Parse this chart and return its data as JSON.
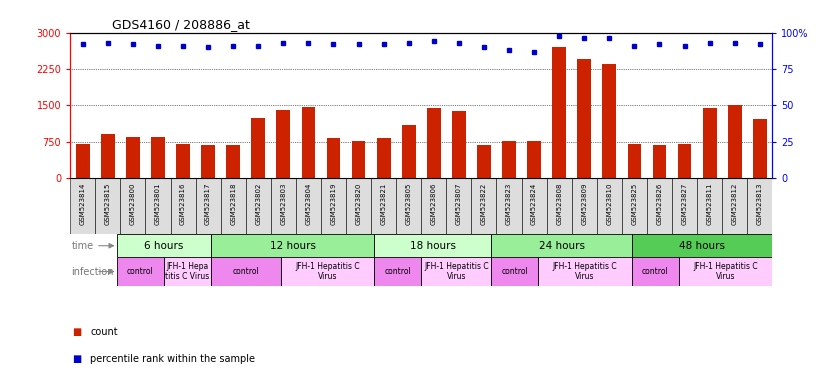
{
  "title": "GDS4160 / 208886_at",
  "samples": [
    "GSM523814",
    "GSM523815",
    "GSM523800",
    "GSM523801",
    "GSM523816",
    "GSM523817",
    "GSM523818",
    "GSM523802",
    "GSM523803",
    "GSM523804",
    "GSM523819",
    "GSM523820",
    "GSM523821",
    "GSM523805",
    "GSM523806",
    "GSM523807",
    "GSM523822",
    "GSM523823",
    "GSM523824",
    "GSM523808",
    "GSM523809",
    "GSM523810",
    "GSM523825",
    "GSM523826",
    "GSM523827",
    "GSM523811",
    "GSM523812",
    "GSM523813"
  ],
  "counts": [
    710,
    900,
    840,
    840,
    700,
    670,
    670,
    1230,
    1400,
    1460,
    820,
    760,
    820,
    1100,
    1450,
    1380,
    690,
    760,
    760,
    2700,
    2450,
    2350,
    700,
    670,
    700,
    1450,
    1510,
    1220
  ],
  "percentiles": [
    92,
    93,
    92,
    91,
    91,
    90,
    91,
    91,
    93,
    93,
    92,
    92,
    92,
    93,
    94,
    93,
    90,
    88,
    87,
    98,
    96,
    96,
    91,
    92,
    91,
    93,
    93,
    92
  ],
  "time_groups": [
    {
      "label": "6 hours",
      "start": 0,
      "end": 4,
      "color": "#ccffcc"
    },
    {
      "label": "12 hours",
      "start": 4,
      "end": 11,
      "color": "#99ee99"
    },
    {
      "label": "18 hours",
      "start": 11,
      "end": 16,
      "color": "#ccffcc"
    },
    {
      "label": "24 hours",
      "start": 16,
      "end": 22,
      "color": "#99ee99"
    },
    {
      "label": "48 hours",
      "start": 22,
      "end": 28,
      "color": "#55cc55"
    }
  ],
  "infection_groups": [
    {
      "label": "control",
      "start": 0,
      "end": 2,
      "color": "#ee88ee"
    },
    {
      "label": "JFH-1 Hepa\ntitis C Virus",
      "start": 2,
      "end": 4,
      "color": "#ffccff"
    },
    {
      "label": "control",
      "start": 4,
      "end": 7,
      "color": "#ee88ee"
    },
    {
      "label": "JFH-1 Hepatitis C\nVirus",
      "start": 7,
      "end": 11,
      "color": "#ffccff"
    },
    {
      "label": "control",
      "start": 11,
      "end": 13,
      "color": "#ee88ee"
    },
    {
      "label": "JFH-1 Hepatitis C\nVirus",
      "start": 13,
      "end": 16,
      "color": "#ffccff"
    },
    {
      "label": "control",
      "start": 16,
      "end": 18,
      "color": "#ee88ee"
    },
    {
      "label": "JFH-1 Hepatitis C\nVirus",
      "start": 18,
      "end": 22,
      "color": "#ffccff"
    },
    {
      "label": "control",
      "start": 22,
      "end": 24,
      "color": "#ee88ee"
    },
    {
      "label": "JFH-1 Hepatitis C\nVirus",
      "start": 24,
      "end": 28,
      "color": "#ffccff"
    }
  ],
  "bar_color": "#cc2200",
  "dot_color": "#0000cc",
  "left_ylim": [
    0,
    3000
  ],
  "right_ylim": [
    0,
    100
  ],
  "left_yticks": [
    0,
    750,
    1500,
    2250,
    3000
  ],
  "right_yticks": [
    0,
    25,
    50,
    75,
    100
  ],
  "xticklabel_bg": "#dddddd",
  "time_label": "time",
  "infection_label": "infection"
}
